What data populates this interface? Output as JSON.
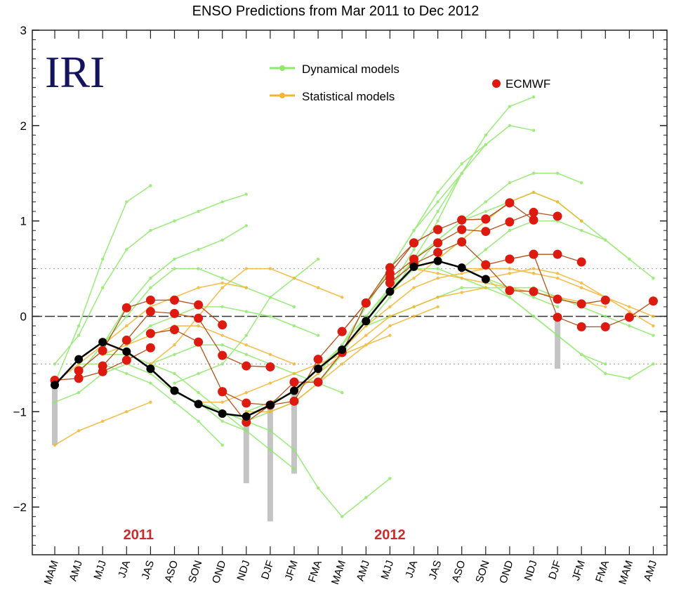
{
  "chart_data": {
    "type": "line",
    "title": "ENSO Predictions from Mar 2011 to Dec 2012",
    "logo_text": "IRI",
    "xlabel": "",
    "ylabel": "",
    "ylim": [
      -2.5,
      3
    ],
    "yticks": [
      3,
      2,
      1,
      0,
      -1,
      -2
    ],
    "categories": [
      "MAM",
      "AMJ",
      "MJJ",
      "JJA",
      "JAS",
      "ASO",
      "SON",
      "OND",
      "NDJ",
      "DJF",
      "JFM",
      "FMA",
      "MAM",
      "AMJ",
      "MJJ",
      "JJA",
      "JAS",
      "ASO",
      "SON",
      "OND",
      "NDJ",
      "DJF",
      "JFM",
      "FMA",
      "MAM",
      "AMJ"
    ],
    "year_labels": [
      {
        "text": "2011",
        "at": 3.5
      },
      {
        "text": "2012",
        "at": 14.0
      }
    ],
    "reference_lines": {
      "zero": 0,
      "dotted": [
        0.5,
        -0.5
      ]
    },
    "legend": {
      "dynamical": "Dynamical models",
      "statistical": "Statistical models",
      "ecmwf": "ECMWF",
      "placement": "top-center"
    },
    "colors": {
      "dynamical": "#8fe86a",
      "statistical": "#f2b531",
      "ecmwf": "#dd1a10",
      "observed": "#000000",
      "spread": "#c4c4c4",
      "year": "#cc2a2a",
      "logo": "#14145e"
    },
    "observed": {
      "start": 0,
      "values": [
        -0.72,
        -0.45,
        -0.27,
        -0.37,
        -0.55,
        -0.78,
        -0.92,
        -1.02,
        -1.05,
        -0.93,
        -0.78,
        -0.55,
        -0.35,
        -0.05,
        0.26,
        0.52,
        0.58,
        0.51,
        0.39
      ]
    },
    "spread_bars": [
      {
        "at": 0,
        "lo": -1.35,
        "hi": -0.7
      },
      {
        "at": 8,
        "lo": -1.75,
        "hi": -1.05
      },
      {
        "at": 9,
        "lo": -2.15,
        "hi": -0.95
      },
      {
        "at": 10,
        "lo": -1.65,
        "hi": -0.8
      },
      {
        "at": 21,
        "lo": -0.55,
        "hi": 0.0
      }
    ],
    "dynamical_runs": [
      {
        "start": 0,
        "values": [
          -0.7,
          -0.1,
          0.6,
          1.2,
          1.37
        ]
      },
      {
        "start": 0,
        "values": [
          -0.5,
          -0.2,
          0.3,
          0.7,
          0.9,
          1.0,
          1.1,
          1.2,
          1.28
        ]
      },
      {
        "start": 0,
        "values": [
          -0.9,
          -0.8,
          -0.6,
          -0.5,
          -0.6,
          -0.8,
          -0.9,
          -1.1,
          -1.2
        ]
      },
      {
        "start": 1,
        "values": [
          -0.6,
          -0.3,
          0.1,
          0.4,
          0.6,
          0.7,
          0.8,
          0.95
        ]
      },
      {
        "start": 1,
        "values": [
          -0.5,
          -0.5,
          -0.6,
          -0.7,
          -0.9,
          -1.1,
          -1.35
        ]
      },
      {
        "start": 2,
        "values": [
          -0.3,
          0.0,
          0.3,
          0.5,
          0.5,
          0.4,
          0.3,
          0.2,
          0.1
        ]
      },
      {
        "start": 2,
        "values": [
          -0.4,
          -0.4,
          -0.5,
          -0.6,
          -0.8,
          -1.0,
          -1.2,
          -1.4,
          -1.6
        ]
      },
      {
        "start": 3,
        "values": [
          -0.3,
          -0.1,
          0.0,
          0.1,
          0.1,
          0.05,
          0.0,
          -0.1,
          -0.2
        ]
      },
      {
        "start": 4,
        "values": [
          -0.5,
          -0.4,
          -0.3,
          -0.3,
          -0.4,
          -0.5,
          -0.6,
          -0.7,
          -0.8
        ]
      },
      {
        "start": 5,
        "values": [
          -0.7,
          -0.6,
          -0.5,
          -0.2,
          0.2,
          0.4,
          0.6
        ]
      },
      {
        "start": 6,
        "values": [
          -0.9,
          -1.0,
          -1.1,
          -1.2,
          -1.4,
          -1.8,
          -2.1,
          -1.9,
          -1.7
        ]
      },
      {
        "start": 7,
        "values": [
          -1.0,
          -1.1,
          -1.0,
          -0.9,
          -0.7,
          -0.4,
          0.0,
          0.3,
          0.5
        ]
      },
      {
        "start": 8,
        "values": [
          -1.0,
          -0.9,
          -0.8,
          -0.6,
          -0.3,
          0.0,
          0.3,
          0.6,
          0.8
        ]
      },
      {
        "start": 9,
        "values": [
          -0.9,
          -0.8,
          -0.6,
          -0.3,
          0.1,
          0.5,
          0.9,
          1.2,
          1.5
        ]
      },
      {
        "start": 10,
        "values": [
          -0.8,
          -0.6,
          -0.3,
          0.1,
          0.5,
          0.9,
          1.3,
          1.6,
          1.8
        ]
      },
      {
        "start": 11,
        "values": [
          -0.55,
          -0.3,
          0.0,
          0.3,
          0.6,
          0.8,
          1.0,
          1.1,
          1.2
        ]
      },
      {
        "start": 12,
        "values": [
          -0.35,
          -0.1,
          0.2,
          0.6,
          1.0,
          1.5,
          1.8,
          2.0,
          1.95
        ]
      },
      {
        "start": 13,
        "values": [
          -0.05,
          0.3,
          0.7,
          1.1,
          1.5,
          1.9,
          2.2,
          2.3
        ]
      },
      {
        "start": 13,
        "values": [
          -0.1,
          0.0,
          0.1,
          0.2,
          0.3,
          0.3,
          0.3,
          0.2,
          0.1
        ]
      },
      {
        "start": 14,
        "values": [
          0.25,
          0.5,
          0.8,
          1.0,
          1.2,
          1.4,
          1.5,
          1.5,
          1.4
        ]
      },
      {
        "start": 15,
        "values": [
          0.5,
          0.5,
          0.4,
          0.3,
          0.2,
          0.0,
          -0.2,
          -0.4,
          -0.5
        ]
      },
      {
        "start": 16,
        "values": [
          0.6,
          0.8,
          1.0,
          1.2,
          1.3,
          1.2,
          1.0,
          0.8,
          0.6
        ]
      },
      {
        "start": 17,
        "values": [
          0.5,
          0.4,
          0.2,
          0.0,
          -0.2,
          -0.4,
          -0.6,
          -0.65,
          -0.5
        ]
      },
      {
        "start": 17,
        "values": [
          0.5,
          0.7,
          0.9,
          1.0,
          1.0,
          0.9,
          0.8,
          0.6,
          0.4
        ]
      },
      {
        "start": 18,
        "values": [
          0.4,
          0.3,
          0.3,
          0.2,
          0.1,
          0.0,
          -0.1,
          -0.2
        ]
      }
    ],
    "statistical_runs": [
      {
        "start": 0,
        "values": [
          -1.35,
          -1.2,
          -1.1,
          -1.0,
          -0.9
        ]
      },
      {
        "start": 0,
        "values": [
          -0.7,
          -0.5,
          -0.3,
          -0.1,
          0.1,
          0.2,
          0.3,
          0.35,
          0.3
        ]
      },
      {
        "start": 2,
        "values": [
          -0.4,
          -0.3,
          -0.2,
          -0.1,
          -0.1,
          -0.2,
          -0.3,
          -0.4,
          -0.5
        ]
      },
      {
        "start": 4,
        "values": [
          -0.5,
          -0.3,
          0.0,
          0.3,
          0.5,
          0.5,
          0.4,
          0.3,
          0.2
        ]
      },
      {
        "start": 6,
        "values": [
          -0.9,
          -0.9,
          -0.8,
          -0.7,
          -0.6,
          -0.5,
          -0.4,
          -0.3,
          -0.2
        ]
      },
      {
        "start": 8,
        "values": [
          -1.0,
          -1.0,
          -0.9,
          -0.7,
          -0.5,
          -0.3,
          -0.1,
          0.0,
          0.1
        ]
      },
      {
        "start": 10,
        "values": [
          -0.8,
          -0.6,
          -0.4,
          -0.2,
          0.0,
          0.1,
          0.2,
          0.25,
          0.3
        ]
      },
      {
        "start": 12,
        "values": [
          -0.35,
          -0.1,
          0.1,
          0.3,
          0.4,
          0.45,
          0.5,
          0.5,
          0.45
        ]
      },
      {
        "start": 14,
        "values": [
          0.25,
          0.4,
          0.6,
          0.8,
          1.0,
          1.2,
          1.3,
          1.2,
          1.0
        ]
      },
      {
        "start": 15,
        "values": [
          0.5,
          0.45,
          0.4,
          0.35,
          0.3,
          0.25,
          0.2,
          0.15,
          0.1
        ]
      },
      {
        "start": 17,
        "values": [
          0.5,
          0.5,
          0.5,
          0.45,
          0.4,
          0.3,
          0.2,
          0.1,
          0.0
        ]
      },
      {
        "start": 18,
        "values": [
          0.4,
          0.45,
          0.5,
          0.45,
          0.35,
          0.2,
          0.05,
          -0.1
        ]
      }
    ],
    "ecmwf_runs": [
      {
        "start": 0,
        "values": [
          -0.67,
          -0.65,
          -0.58,
          -0.46,
          -0.33
        ]
      },
      {
        "start": 1,
        "values": [
          -0.57,
          -0.36,
          0.09,
          0.17,
          0.17,
          0.12,
          -0.09
        ]
      },
      {
        "start": 2,
        "values": [
          -0.52,
          -0.25,
          0.05,
          0.03,
          -0.02,
          -0.41,
          -0.52,
          -0.53
        ]
      },
      {
        "start": 4,
        "values": [
          -0.18,
          -0.14,
          -0.27,
          -0.79,
          -0.91,
          -0.93,
          -0.69
        ]
      },
      {
        "start": 7,
        "values": [
          -0.79,
          -1.11,
          -0.93,
          -0.89,
          -0.45,
          -0.16,
          0.14
        ]
      },
      {
        "start": 10,
        "values": [
          -0.69,
          -0.69,
          -0.38,
          0.14,
          0.51,
          0.77,
          0.91
        ]
      },
      {
        "start": 12,
        "values": [
          -0.16,
          0.14,
          0.45,
          0.77,
          0.91,
          1.01,
          1.02,
          1.19
        ]
      },
      {
        "start": 14,
        "values": [
          0.4,
          0.6,
          0.77,
          0.91,
          0.89,
          0.99,
          1.09,
          1.05
        ]
      },
      {
        "start": 14,
        "values": [
          0.35,
          0.55,
          0.67,
          0.78,
          0.54,
          0.6,
          0.65,
          0.65,
          0.57
        ]
      },
      {
        "start": 17,
        "values": [
          1.01,
          1.02,
          1.19,
          1.01
        ]
      },
      {
        "start": 18,
        "values": [
          0.54,
          0.27,
          0.26,
          0.18,
          0.13,
          0.17
        ]
      },
      {
        "start": 19,
        "values": [
          0.6,
          0.65,
          -0.01,
          -0.11,
          -0.11,
          -0.01,
          0.16
        ]
      }
    ]
  }
}
